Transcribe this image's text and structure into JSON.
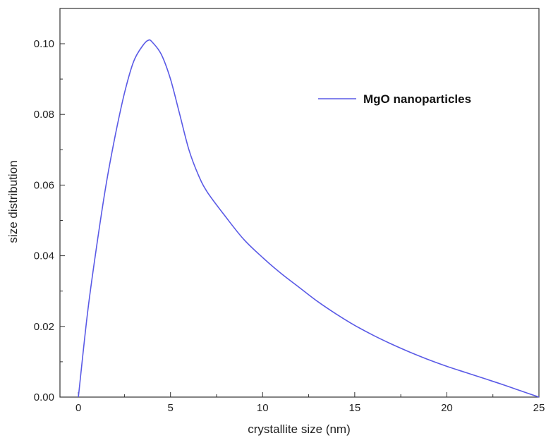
{
  "chart_data": {
    "type": "line",
    "xlabel": "crystallite size (nm)",
    "ylabel": "size distribution",
    "xlim": [
      -1,
      25
    ],
    "ylim": [
      0,
      0.1
    ],
    "xticks": [
      0,
      5,
      10,
      15,
      20,
      25
    ],
    "xtick_labels": [
      "0",
      "5",
      "10",
      "15",
      "20",
      "25"
    ],
    "yticks": [
      0.0,
      0.02,
      0.04,
      0.06,
      0.08,
      0.1
    ],
    "ytick_labels": [
      "0.00",
      "0.02",
      "0.04",
      "0.06",
      "0.08",
      "0.10"
    ],
    "grid": false,
    "legend_position": "top-right",
    "series": [
      {
        "name": "MgO nanoparticles",
        "color": "#5a5ae6",
        "x": [
          0,
          0.5,
          1,
          1.5,
          2,
          2.5,
          3,
          3.5,
          3.8,
          4,
          4.5,
          5,
          5.5,
          6,
          6.5,
          7,
          8,
          9,
          10,
          11,
          12,
          13,
          14,
          15,
          16,
          17,
          18,
          19,
          20,
          21,
          22,
          23,
          24,
          25
        ],
        "y": [
          0,
          0.024,
          0.043,
          0.06,
          0.074,
          0.086,
          0.095,
          0.0995,
          0.101,
          0.1005,
          0.097,
          0.09,
          0.08,
          0.07,
          0.063,
          0.058,
          0.051,
          0.0445,
          0.0395,
          0.035,
          0.031,
          0.027,
          0.0235,
          0.0203,
          0.0175,
          0.015,
          0.0127,
          0.0106,
          0.0087,
          0.007,
          0.0053,
          0.0036,
          0.0018,
          0
        ]
      }
    ]
  }
}
